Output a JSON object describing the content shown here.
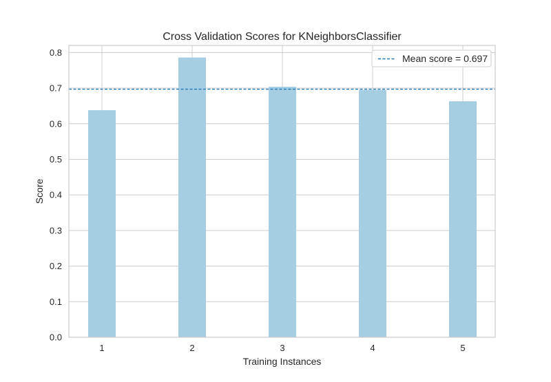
{
  "chart_data": {
    "type": "bar",
    "title": "Cross Validation Scores for KNeighborsClassifier",
    "xlabel": "Training Instances",
    "ylabel": "Score",
    "categories": [
      "1",
      "2",
      "3",
      "4",
      "5"
    ],
    "values": [
      0.638,
      0.786,
      0.704,
      0.695,
      0.663
    ],
    "ylim": [
      0.0,
      0.82
    ],
    "yticks": [
      "0.0",
      "0.1",
      "0.2",
      "0.3",
      "0.4",
      "0.5",
      "0.6",
      "0.7",
      "0.8"
    ],
    "grid": true,
    "legend_position": "top-right",
    "mean_score": 0.697,
    "mean_label": "Mean score = 0.697",
    "colors": {
      "bar": "#a6cee3",
      "mean_line": "#1f78b4",
      "grid": "#cccccc",
      "axis": "#cccccc",
      "text": "#262626"
    }
  }
}
